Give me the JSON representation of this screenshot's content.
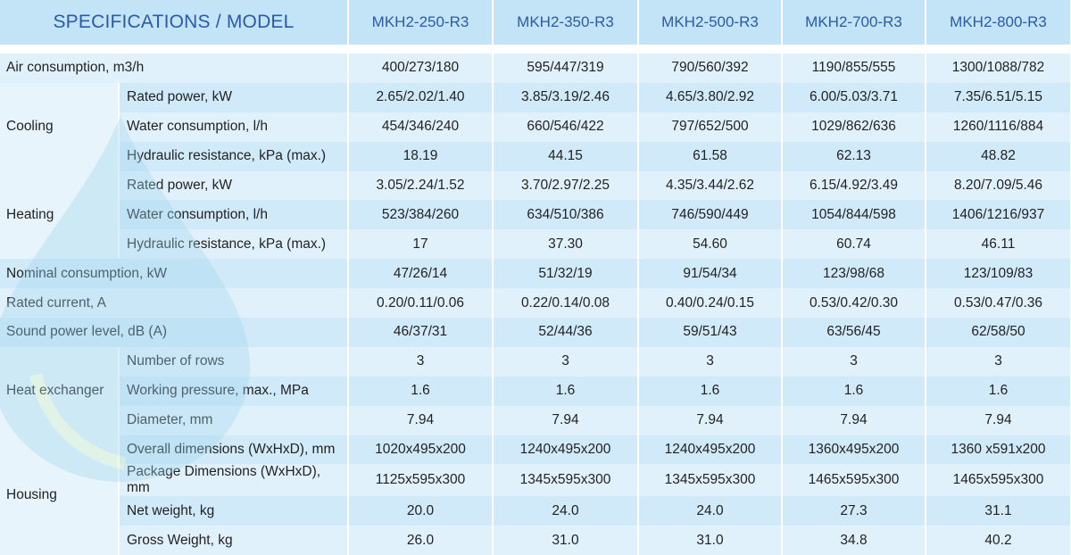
{
  "header": {
    "spec_label": "SPECIFICATIONS / MODEL",
    "models": [
      "MKH2-250-R3",
      "MKH2-350-R3",
      "MKH2-500-R3",
      "MKH2-700-R3",
      "MKH2-800-R3"
    ]
  },
  "accent_color": "#2a5ba8",
  "groups": [
    {
      "category": "Air consumption, m3/h",
      "single": true,
      "rows": [
        {
          "values": [
            "400/273/180",
            "595/447/319",
            "790/560/392",
            "1190/855/555",
            "1300/1088/782"
          ]
        }
      ]
    },
    {
      "category": "Cooling",
      "rows": [
        {
          "param": "Rated power, kW",
          "values": [
            "2.65/2.02/1.40",
            "3.85/3.19/2.46",
            "4.65/3.80/2.92",
            "6.00/5.03/3.71",
            "7.35/6.51/5.15"
          ]
        },
        {
          "param": "Water consumption, l/h",
          "values": [
            "454/346/240",
            "660/546/422",
            "797/652/500",
            "1029/862/636",
            "1260/1116/884"
          ]
        },
        {
          "param": "Hydraulic resistance, kPa (max.)",
          "values": [
            "18.19",
            "44.15",
            "61.58",
            "62.13",
            "48.82"
          ]
        }
      ]
    },
    {
      "category": "Heating",
      "rows": [
        {
          "param": "Rated power, kW",
          "values": [
            "3.05/2.24/1.52",
            "3.70/2.97/2.25",
            "4.35/3.44/2.62",
            "6.15/4.92/3.49",
            "8.20/7.09/5.46"
          ]
        },
        {
          "param": "Water consumption, l/h",
          "values": [
            "523/384/260",
            "634/510/386",
            "746/590/449",
            "1054/844/598",
            "1406/1216/937"
          ]
        },
        {
          "param": "Hydraulic resistance, kPa (max.)",
          "values": [
            "17",
            "37.30",
            "54.60",
            "60.74",
            "46.11"
          ]
        }
      ]
    },
    {
      "category": "Nominal consumption, kW",
      "single": true,
      "rows": [
        {
          "values": [
            "47/26/14",
            "51/32/19",
            "91/54/34",
            "123/98/68",
            "123/109/83"
          ]
        }
      ]
    },
    {
      "category": "Rated current, A",
      "single": true,
      "rows": [
        {
          "values": [
            "0.20/0.11/0.06",
            "0.22/0.14/0.08",
            "0.40/0.24/0.15",
            "0.53/0.42/0.30",
            "0.53/0.47/0.36"
          ]
        }
      ]
    },
    {
      "category": "Sound power level, dB (A)",
      "single": true,
      "rows": [
        {
          "values": [
            "46/37/31",
            "52/44/36",
            "59/51/43",
            "63/56/45",
            "62/58/50"
          ]
        }
      ]
    },
    {
      "category": "Heat exchanger",
      "rows": [
        {
          "param": "Number of rows",
          "values": [
            "3",
            "3",
            "3",
            "3",
            "3"
          ]
        },
        {
          "param": "Working pressure, max., MPa",
          "values": [
            "1.6",
            "1.6",
            "1.6",
            "1.6",
            "1.6"
          ]
        },
        {
          "param": "Diameter, mm",
          "values": [
            "7.94",
            "7.94",
            "7.94",
            "7.94",
            "7.94"
          ]
        }
      ]
    },
    {
      "category": "Housing",
      "rows": [
        {
          "param": "Overall dimensions (WxHxD), mm",
          "values": [
            "1020x495x200",
            "1240x495x200",
            "1240x495x200",
            "1360x495x200",
            "1360 x591x200"
          ]
        },
        {
          "param": "Package Dimensions (WxHxD), mm",
          "values": [
            "1125x595x300",
            "1345x595x300",
            "1345x595x300",
            "1465x595x300",
            "1465x595x300"
          ]
        },
        {
          "param": "Net weight, kg",
          "values": [
            "20.0",
            "24.0",
            "24.0",
            "27.3",
            "31.1"
          ]
        },
        {
          "param": "Gross Weight, kg",
          "values": [
            "26.0",
            "31.0",
            "31.0",
            "34.8",
            "40.2"
          ]
        }
      ]
    }
  ]
}
